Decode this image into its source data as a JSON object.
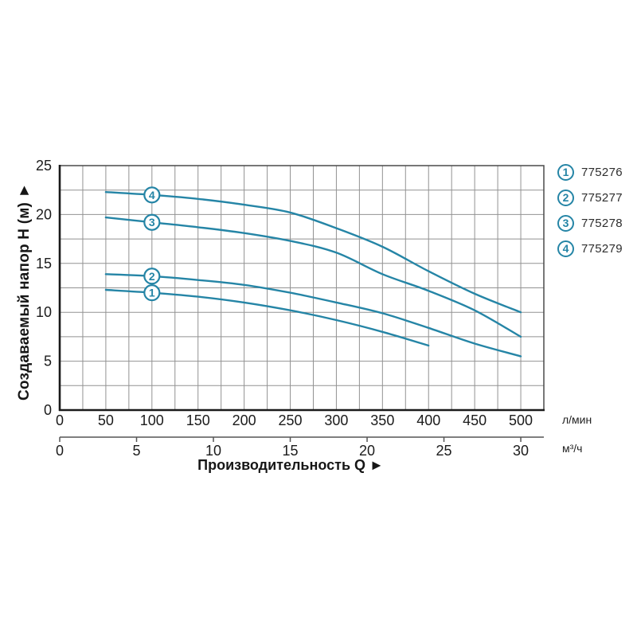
{
  "colors": {
    "curve": "#2585a6",
    "grid": "#929292",
    "plot_border": "#4a4a4a",
    "axis": "#1a1a1a",
    "text": "#1b1b1b"
  },
  "chart_data": {
    "type": "line",
    "title": "",
    "x_axis": {
      "label": "Производительность Q ►",
      "primary_unit": "л/мин",
      "primary_ticks": [
        0,
        50,
        100,
        150,
        200,
        250,
        300,
        350,
        400,
        450,
        500
      ],
      "primary_range": [
        0,
        525
      ],
      "secondary_unit": "м³/ч",
      "secondary_ticks": [
        0,
        5,
        10,
        15,
        20,
        25,
        30
      ],
      "secondary_per_primary": 0.06
    },
    "y_axis": {
      "label": "Создаваемый напор H (м) ►",
      "ticks": [
        0,
        5,
        10,
        15,
        20,
        25
      ],
      "range": [
        0,
        25
      ]
    },
    "grid": {
      "on": true,
      "x_step": 25,
      "y_step": 2.5
    },
    "legend_position": "right-top",
    "series_label_at_x": 100,
    "series": [
      {
        "num": "1",
        "code": "775276",
        "points": [
          [
            50,
            12.3
          ],
          [
            100,
            12.0
          ],
          [
            150,
            11.6
          ],
          [
            200,
            11.0
          ],
          [
            250,
            10.2
          ],
          [
            300,
            9.2
          ],
          [
            350,
            8.0
          ],
          [
            400,
            6.6
          ]
        ]
      },
      {
        "num": "2",
        "code": "775277",
        "points": [
          [
            50,
            13.9
          ],
          [
            100,
            13.7
          ],
          [
            150,
            13.3
          ],
          [
            200,
            12.8
          ],
          [
            250,
            12.0
          ],
          [
            300,
            11.0
          ],
          [
            350,
            9.9
          ],
          [
            400,
            8.4
          ],
          [
            450,
            6.8
          ],
          [
            500,
            5.5
          ]
        ]
      },
      {
        "num": "3",
        "code": "775278",
        "points": [
          [
            50,
            19.7
          ],
          [
            100,
            19.2
          ],
          [
            150,
            18.7
          ],
          [
            200,
            18.1
          ],
          [
            250,
            17.3
          ],
          [
            300,
            16.1
          ],
          [
            350,
            13.9
          ],
          [
            400,
            12.2
          ],
          [
            450,
            10.2
          ],
          [
            500,
            7.5
          ]
        ]
      },
      {
        "num": "4",
        "code": "775279",
        "points": [
          [
            50,
            22.3
          ],
          [
            100,
            22.0
          ],
          [
            150,
            21.6
          ],
          [
            200,
            21.0
          ],
          [
            250,
            20.2
          ],
          [
            300,
            18.6
          ],
          [
            350,
            16.7
          ],
          [
            400,
            14.2
          ],
          [
            450,
            11.9
          ],
          [
            500,
            10.0
          ]
        ]
      }
    ]
  },
  "legend": {
    "items": [
      {
        "num": "1",
        "code": "775276"
      },
      {
        "num": "2",
        "code": "775277"
      },
      {
        "num": "3",
        "code": "775278"
      },
      {
        "num": "4",
        "code": "775279"
      }
    ]
  }
}
